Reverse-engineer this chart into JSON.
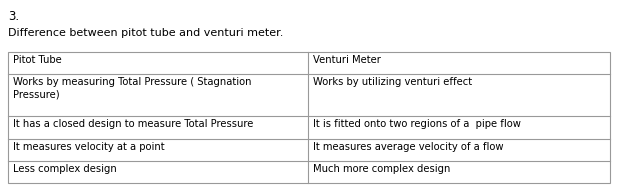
{
  "title_number": "3.",
  "subtitle": "Difference between pitot tube and venturi meter.",
  "col1_header": "Pitot Tube",
  "col2_header": "Venturi Meter",
  "rows": [
    [
      "Works by measuring Total Pressure ( Stagnation\nPressure)",
      "Works by utilizing venturi effect"
    ],
    [
      "It has a closed design to measure Total Pressure",
      "It is fitted onto two regions of a  pipe flow"
    ],
    [
      "It measures velocity at a point",
      "It measures average velocity of a flow"
    ],
    [
      "Less complex design",
      "Much more complex design"
    ]
  ],
  "bg_color": "#ffffff",
  "text_color": "#000000",
  "border_color": "#999999",
  "font_size": 7.2,
  "title_font_size": 8.5,
  "subtitle_font_size": 8.0,
  "col_split": 0.499
}
